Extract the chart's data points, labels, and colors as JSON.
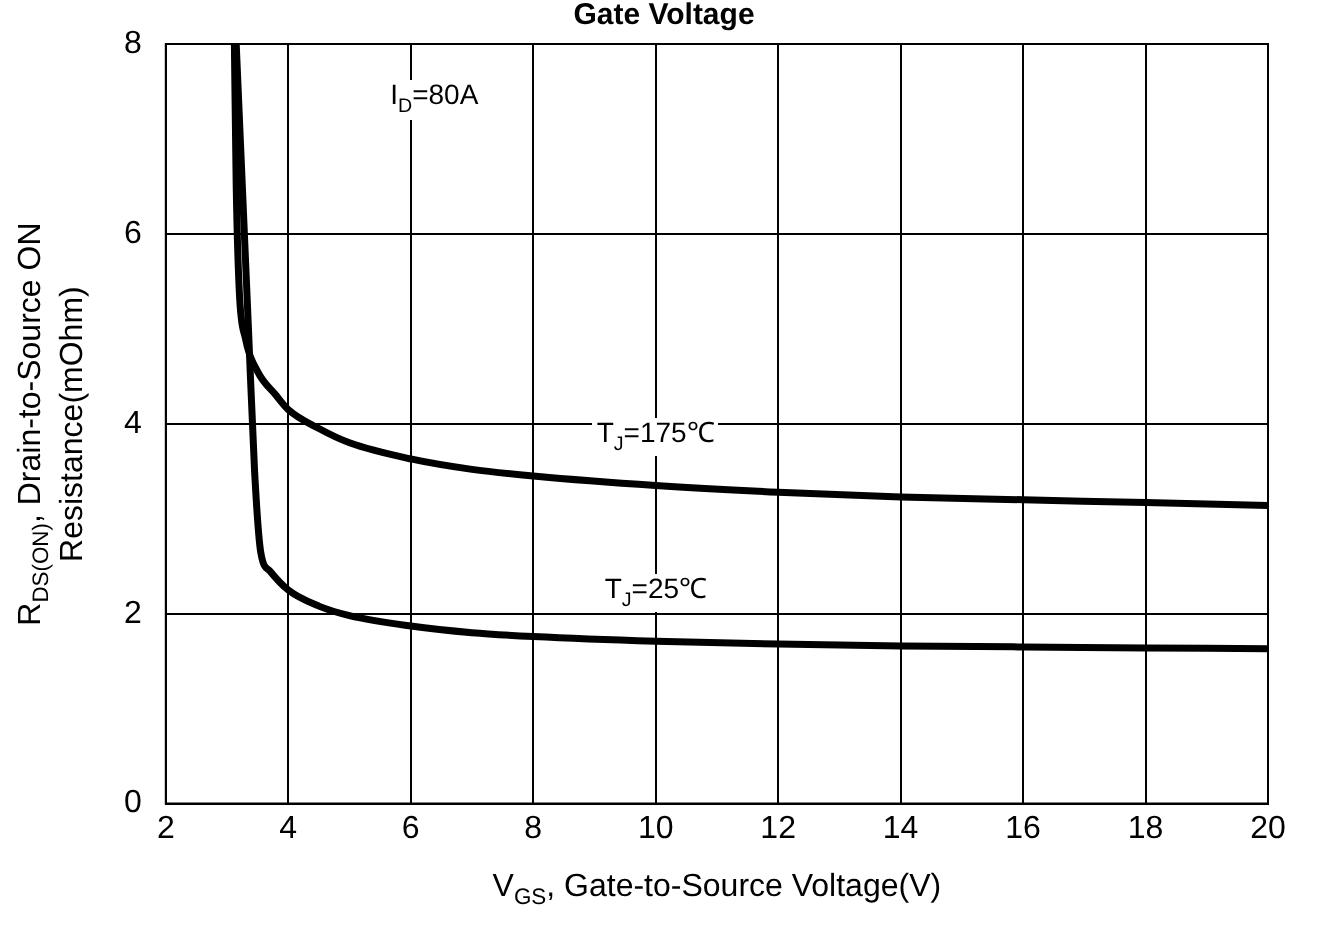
{
  "chart_data": {
    "type": "line",
    "title": "Gate Voltage",
    "xlabel": "V$_{GS}$, Gate-to-Source Voltage(V)",
    "ylabel": "R$_{DS(ON)}$, Drain-to-Source ON Resistance(mOhm)",
    "annotations": [
      "I$_{D}$=80A"
    ],
    "series": [
      {
        "name": "T$_{J}$=175℃",
        "color": "#000000",
        "x": [
          3.12,
          3.15,
          3.2,
          3.3,
          3.5,
          3.8,
          4,
          4.5,
          5,
          6,
          7,
          8,
          10,
          12,
          14,
          16,
          18,
          20
        ],
        "values": [
          8,
          6.5,
          5.4,
          4.9,
          4.55,
          4.3,
          4.15,
          3.95,
          3.8,
          3.63,
          3.52,
          3.45,
          3.35,
          3.28,
          3.23,
          3.2,
          3.17,
          3.14
        ]
      },
      {
        "name": "T$_{J}$=25℃",
        "color": "#000000",
        "x": [
          3.15,
          3.25,
          3.35,
          3.45,
          3.55,
          3.7,
          4,
          4.5,
          5,
          6,
          7,
          8,
          10,
          12,
          14,
          16,
          18,
          20
        ],
        "values": [
          8,
          6.5,
          5,
          3.5,
          2.65,
          2.45,
          2.25,
          2.08,
          1.98,
          1.87,
          1.8,
          1.76,
          1.71,
          1.68,
          1.66,
          1.65,
          1.64,
          1.63
        ]
      }
    ],
    "xlim": [
      2,
      20
    ],
    "xticks": [
      2,
      4,
      6,
      8,
      10,
      12,
      14,
      16,
      18,
      20
    ],
    "ylim": [
      0,
      8
    ],
    "yticks": [
      0,
      2,
      4,
      6,
      8
    ],
    "grid": true,
    "legend": false,
    "marker": "none",
    "line_style": "solid"
  }
}
